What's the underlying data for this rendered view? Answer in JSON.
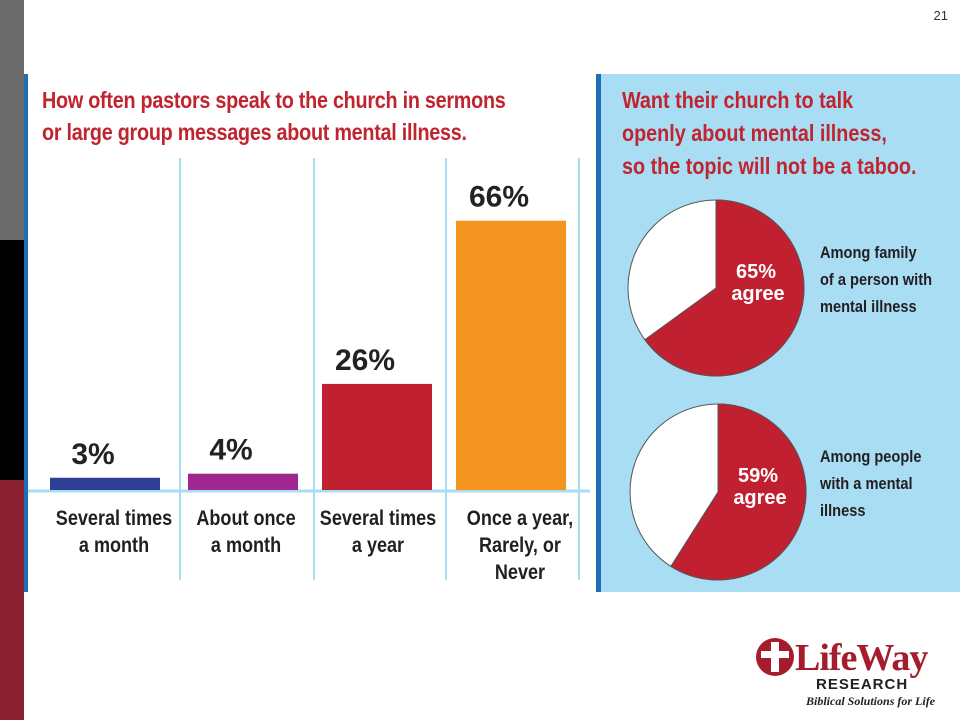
{
  "page_number": "21",
  "left_title": [
    "How often pastors speak to the church in sermons",
    "or large group messages about mental illness."
  ],
  "right_title": [
    "Want their church to talk",
    "openly about mental illness,",
    "so the topic will not be a taboo."
  ],
  "logo": {
    "name": "LifeWay",
    "sub": "RESEARCH",
    "tagline": "Biblical Solutions for Life"
  },
  "colors": {
    "title_red": "#c0242f",
    "panel_blue": "#a8ddf4",
    "divider_blue": "#a8ddf4",
    "pie_red": "#c0202f"
  },
  "chart_data": [
    {
      "type": "bar",
      "title": "How often pastors speak to the church in sermons or large group messages about mental illness.",
      "categories": [
        [
          "Several times",
          "a month"
        ],
        [
          "About once",
          "a month"
        ],
        [
          "Several times",
          "a year"
        ],
        [
          "Once a year,",
          "Rarely, or",
          "Never"
        ]
      ],
      "values": [
        3,
        4,
        26,
        66
      ],
      "value_labels": [
        "3%",
        "4%",
        "26%",
        "66%"
      ],
      "bar_colors": [
        "#2e3f98",
        "#a0278f",
        "#c0202f",
        "#f39420"
      ],
      "ylim": [
        0,
        70
      ]
    },
    {
      "type": "pie",
      "slices": [
        {
          "label": "agree",
          "value": 65,
          "value_label": "65%",
          "color": "#c0202f"
        },
        {
          "label": "",
          "value": 35,
          "color": "#ffffff"
        }
      ],
      "annotation": [
        "Among family",
        "of a person with",
        "mental illness"
      ]
    },
    {
      "type": "pie",
      "slices": [
        {
          "label": "agree",
          "value": 59,
          "value_label": "59%",
          "color": "#c0202f"
        },
        {
          "label": "",
          "value": 41,
          "color": "#ffffff"
        }
      ],
      "annotation": [
        "Among people",
        "with a mental",
        "illness"
      ]
    }
  ]
}
